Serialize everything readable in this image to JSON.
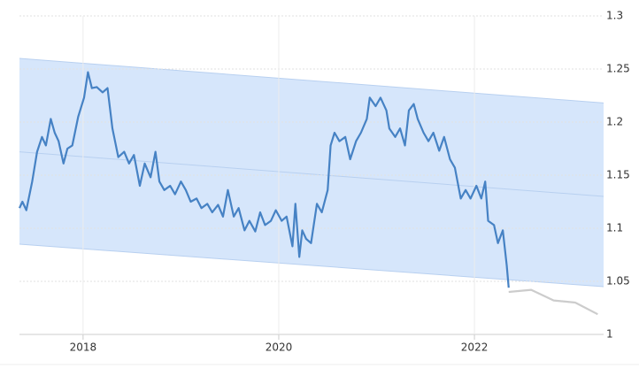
{
  "chart_data": {
    "type": "line",
    "xlim": [
      2017.35,
      2023.32
    ],
    "xticks": [
      2018,
      2020,
      2022
    ],
    "ylim": [
      1,
      1.3
    ],
    "yticks": [
      1,
      1.05,
      1.1,
      1.15,
      1.2,
      1.25,
      1.3
    ],
    "grid": true,
    "channel": {
      "color": "#d6e6fb",
      "edge_color": "#b8d0f0",
      "x": [
        2017.35,
        2023.32
      ],
      "upper": [
        1.26,
        1.218
      ],
      "lower": [
        1.085,
        1.045
      ],
      "middle": [
        1.172,
        1.13
      ]
    },
    "series": [
      {
        "color": "#4682c4",
        "x": [
          2017.35,
          2017.38,
          2017.42,
          2017.48,
          2017.53,
          2017.58,
          2017.62,
          2017.67,
          2017.71,
          2017.75,
          2017.8,
          2017.84,
          2017.89,
          2017.95,
          2018.01,
          2018.05,
          2018.09,
          2018.14,
          2018.2,
          2018.25,
          2018.3,
          2018.36,
          2018.42,
          2018.47,
          2018.52,
          2018.58,
          2018.63,
          2018.69,
          2018.74,
          2018.78,
          2018.83,
          2018.89,
          2018.94,
          2019.0,
          2019.05,
          2019.1,
          2019.16,
          2019.21,
          2019.27,
          2019.32,
          2019.38,
          2019.43,
          2019.48,
          2019.54,
          2019.59,
          2019.65,
          2019.7,
          2019.76,
          2019.81,
          2019.86,
          2019.92,
          2019.97,
          2020.03,
          2020.08,
          2020.14,
          2020.17,
          2020.21,
          2020.24,
          2020.28,
          2020.33,
          2020.39,
          2020.44,
          2020.5,
          2020.53,
          2020.57,
          2020.62,
          2020.68,
          2020.73,
          2020.79,
          2020.84,
          2020.9,
          2020.93,
          2020.99,
          2021.04,
          2021.1,
          2021.13,
          2021.19,
          2021.24,
          2021.29,
          2021.33,
          2021.38,
          2021.42,
          2021.48,
          2021.53,
          2021.58,
          2021.64,
          2021.69,
          2021.75,
          2021.8,
          2021.86,
          2021.91,
          2021.96,
          2022.02,
          2022.07,
          2022.11,
          2022.14,
          2022.2,
          2022.24,
          2022.29,
          2022.33,
          2022.35
        ],
        "values": [
          1.119,
          1.125,
          1.117,
          1.144,
          1.172,
          1.186,
          1.178,
          1.203,
          1.19,
          1.182,
          1.161,
          1.175,
          1.178,
          1.205,
          1.223,
          1.247,
          1.232,
          1.233,
          1.228,
          1.232,
          1.194,
          1.167,
          1.172,
          1.161,
          1.169,
          1.14,
          1.161,
          1.148,
          1.172,
          1.144,
          1.136,
          1.14,
          1.132,
          1.144,
          1.136,
          1.125,
          1.128,
          1.119,
          1.123,
          1.115,
          1.122,
          1.111,
          1.136,
          1.111,
          1.119,
          1.098,
          1.107,
          1.097,
          1.115,
          1.103,
          1.107,
          1.117,
          1.107,
          1.111,
          1.083,
          1.123,
          1.073,
          1.098,
          1.09,
          1.086,
          1.123,
          1.115,
          1.136,
          1.178,
          1.19,
          1.182,
          1.186,
          1.165,
          1.182,
          1.19,
          1.203,
          1.223,
          1.215,
          1.223,
          1.211,
          1.194,
          1.186,
          1.194,
          1.178,
          1.211,
          1.217,
          1.203,
          1.19,
          1.182,
          1.19,
          1.173,
          1.186,
          1.165,
          1.157,
          1.128,
          1.136,
          1.128,
          1.14,
          1.128,
          1.144,
          1.107,
          1.103,
          1.086,
          1.098,
          1.065,
          1.044
        ]
      },
      {
        "color": "#cccccc",
        "x": [
          2022.35,
          2022.58,
          2022.81,
          2023.03,
          2023.26
        ],
        "values": [
          1.04,
          1.042,
          1.032,
          1.03,
          1.019
        ]
      }
    ]
  }
}
